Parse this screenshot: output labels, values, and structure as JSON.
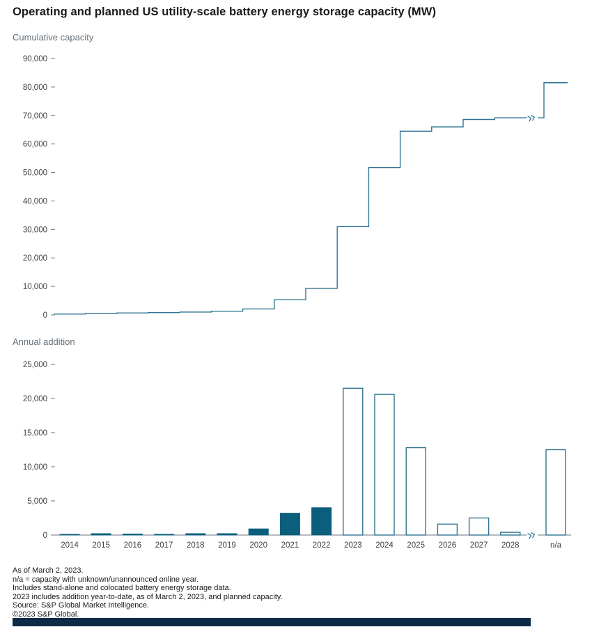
{
  "title": "Operating and planned US utility-scale battery energy storage capacity (MW)",
  "styles": {
    "background": "#ffffff",
    "accent_line": "#2f7491",
    "bar_fill": "#0c5f7c",
    "bar_outline": "#2f7491",
    "axis_color": "#6b7680",
    "tick_label_color": "#3b4146",
    "subtitle_color": "#646e76",
    "brand_bar_color": "#0d2a47"
  },
  "chart_data": [
    {
      "id": "cumulative",
      "type": "line",
      "line_style": "step",
      "title": "Cumulative capacity",
      "categories": [
        "2014",
        "2015",
        "2016",
        "2017",
        "2018",
        "2019",
        "2020",
        "2021",
        "2022",
        "2023",
        "2024",
        "2025",
        "2026",
        "2027",
        "2028",
        "n/a"
      ],
      "values": [
        300,
        500,
        700,
        800,
        1000,
        1300,
        2100,
        5300,
        9300,
        31000,
        51700,
        64500,
        66000,
        68600,
        69200,
        81500
      ],
      "ylabel": "",
      "xlabel": "",
      "ylim": [
        0,
        90000
      ],
      "ytick_step": 10000,
      "grid": false,
      "legend": "none",
      "x_labels_shown": false,
      "axis_break_before": "n/a"
    },
    {
      "id": "annual",
      "type": "bar",
      "title": "Annual addition",
      "categories": [
        "2014",
        "2015",
        "2016",
        "2017",
        "2018",
        "2019",
        "2020",
        "2021",
        "2022",
        "2023",
        "2024",
        "2025",
        "2026",
        "2027",
        "2028",
        "n/a"
      ],
      "values": [
        50,
        200,
        150,
        100,
        200,
        200,
        900,
        3200,
        4000,
        21500,
        20600,
        12800,
        1600,
        2500,
        400,
        12500
      ],
      "bar_styles": [
        "filled",
        "filled",
        "filled",
        "filled",
        "filled",
        "filled",
        "filled",
        "filled",
        "filled",
        "outlined",
        "outlined",
        "outlined",
        "outlined",
        "outlined",
        "outlined",
        "outlined"
      ],
      "ylabel": "",
      "xlabel": "",
      "ylim": [
        0,
        25000
      ],
      "ytick_step": 5000,
      "grid": false,
      "legend": "none",
      "x_labels_shown": true,
      "axis_break_before": "n/a"
    }
  ],
  "footnotes": [
    "As of March 2, 2023.",
    "n/a = capacity with unknown/unannounced online year.",
    "Includes stand-alone and colocated battery energy storage data.",
    "2023 includes addition year-to-date, as of March 2, 2023, and planned capacity.",
    "Source: S&P Global Market Intelligence.",
    "©2023 S&P Global."
  ]
}
